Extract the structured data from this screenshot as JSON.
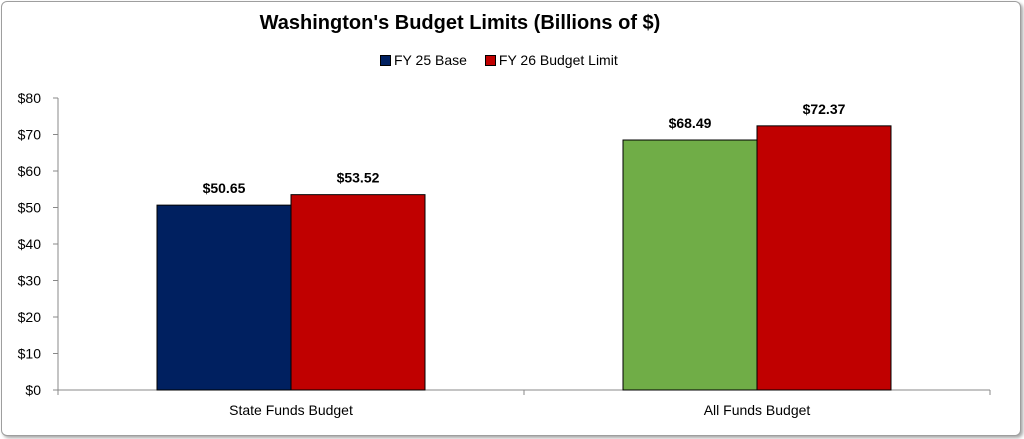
{
  "chart_data": {
    "type": "bar",
    "title": "Washington's Budget Limits (Billions of $)",
    "xlabel": "",
    "ylabel": "",
    "categories": [
      "State Funds Budget",
      "All Funds Budget"
    ],
    "series": [
      {
        "name": "FY 25 Base",
        "values": [
          50.65,
          68.49
        ],
        "colors": [
          "#002060",
          "#70AD47"
        ]
      },
      {
        "name": "FY 26 Budget Limit",
        "values": [
          53.52,
          72.37
        ],
        "colors": [
          "#C00000",
          "#C00000"
        ]
      }
    ],
    "value_labels": [
      [
        "$50.65",
        "$68.49"
      ],
      [
        "$53.52",
        "$72.37"
      ]
    ],
    "ylim": [
      0,
      80
    ],
    "yticks": [
      0,
      10,
      20,
      30,
      40,
      50,
      60,
      70,
      80
    ],
    "ytick_labels": [
      "$0",
      "$10",
      "$20",
      "$30",
      "$40",
      "$50",
      "$60",
      "$70",
      "$80"
    ],
    "legend": {
      "placement": "top",
      "entries": [
        {
          "label": "FY 25 Base",
          "color": "#002060"
        },
        {
          "label": "FY 26 Budget Limit",
          "color": "#C00000"
        }
      ]
    },
    "grid": false
  }
}
